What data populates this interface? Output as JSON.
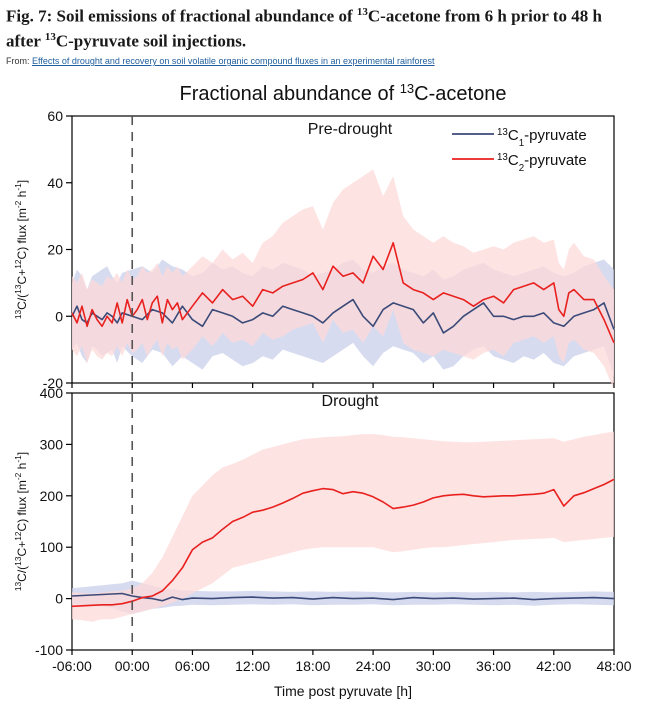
{
  "figure": {
    "label": "Fig. 7:",
    "title_a": " Soil emissions of fractional abundance of ",
    "title_iso": "13",
    "title_b": "C-acetone from 6  h prior to 48  h after ",
    "title_c": "C-pyruvate soil injections.",
    "from_prefix": "From: ",
    "from_link": "Effects of drought and recovery on soil volatile organic compound fluxes in an experimental rainforest"
  },
  "chart_data": {
    "type": "line",
    "title": "Fractional abundance of 13C-acetone",
    "xlabel": "Time post pyruvate  [h]",
    "x_ticks": [
      "-06:00",
      "00:00",
      "06:00",
      "12:00",
      "18:00",
      "24:00",
      "30:00",
      "36:00",
      "42:00",
      "48:00"
    ],
    "x_tick_values": [
      -6,
      0,
      6,
      12,
      18,
      24,
      30,
      36,
      42,
      48
    ],
    "xlim": [
      -6,
      48
    ],
    "vline_x": 0,
    "legend_position": "top-right",
    "legend": [
      {
        "sup": "13",
        "main": "C",
        "sub": "1",
        "tail": "-pyruvate",
        "color": "#3b4a78"
      },
      {
        "sup": "13",
        "main": "C",
        "sub": "2",
        "tail": "-pyruvate",
        "color": "#e8211f"
      }
    ],
    "panels": [
      {
        "title": "Pre-drought",
        "ylim": [
          -20,
          60
        ],
        "yticks": [
          "-20",
          "0",
          "20",
          "40",
          "60"
        ],
        "ytick_values": [
          -20,
          0,
          20,
          40,
          60
        ],
        "ylabel": "13C/(13C+12C) flux [m-2 h-1]",
        "series": [
          {
            "name": "13C1-pyruvate",
            "color": "#3b4a78",
            "band": "#c9cfe9",
            "x": [
              -6,
              -5.5,
              -5,
              -4.5,
              -4,
              -3.5,
              -3,
              -2.5,
              -2,
              -1.5,
              -1,
              0,
              1,
              2,
              3,
              4,
              5,
              6,
              7,
              8,
              9,
              10,
              11,
              12,
              13,
              14,
              15,
              16,
              17,
              18,
              19,
              20,
              21,
              22,
              23,
              24,
              25,
              26,
              27,
              28,
              29,
              30,
              31,
              32,
              33,
              34,
              35,
              36,
              37,
              38,
              39,
              40,
              41,
              42,
              43,
              44,
              45,
              46,
              47,
              48
            ],
            "y": [
              0,
              3,
              -1,
              -2,
              1,
              0,
              -1,
              1,
              0,
              -2,
              1,
              0,
              -1,
              2,
              1,
              -2,
              3,
              -1,
              -3,
              2,
              1,
              0,
              -2,
              -1,
              1,
              0,
              3,
              2,
              1,
              0,
              -2,
              1,
              3,
              5,
              0,
              -3,
              2,
              4,
              3,
              2,
              -2,
              1,
              -5,
              -3,
              0,
              2,
              4,
              0,
              0,
              -1,
              0,
              0,
              1,
              -2,
              -3,
              0,
              1,
              2,
              4,
              -4
            ],
            "upper": [
              10,
              14,
              12,
              8,
              12,
              13,
              14,
              15,
              12,
              10,
              13,
              14,
              15,
              13,
              17,
              15,
              14,
              12,
              13,
              16,
              14,
              15,
              13,
              12,
              15,
              14,
              16,
              15,
              14,
              12,
              13,
              14,
              16,
              17,
              14,
              13,
              15,
              16,
              14,
              13,
              12,
              14,
              11,
              12,
              14,
              15,
              16,
              14,
              13,
              12,
              13,
              14,
              15,
              13,
              12,
              13,
              15,
              16,
              17,
              14
            ],
            "lower": [
              -10,
              -8,
              -12,
              -14,
              -9,
              -10,
              -12,
              -11,
              -10,
              -14,
              -9,
              -12,
              -14,
              -10,
              -11,
              -15,
              -12,
              -14,
              -16,
              -12,
              -11,
              -13,
              -15,
              -14,
              -12,
              -13,
              -10,
              -11,
              -12,
              -13,
              -14,
              -12,
              -10,
              -8,
              -12,
              -15,
              -11,
              -9,
              -10,
              -11,
              -14,
              -12,
              -16,
              -15,
              -12,
              -10,
              -9,
              -12,
              -13,
              -14,
              -12,
              -13,
              -11,
              -14,
              -15,
              -12,
              -11,
              -10,
              -9,
              -18
            ]
          },
          {
            "name": "13C2-pyruvate",
            "color": "#e8211f",
            "band": "#fdd9d9",
            "x": [
              -6,
              -5.5,
              -5,
              -4.5,
              -4,
              -3.5,
              -3,
              -2.5,
              -2,
              -1.5,
              -1,
              -0.5,
              0,
              0.5,
              1,
              1.5,
              2,
              2.5,
              3,
              3.5,
              4,
              4.5,
              5,
              6,
              7,
              8,
              9,
              10,
              11,
              12,
              13,
              14,
              15,
              16,
              17,
              18,
              19,
              20,
              21,
              22,
              23,
              24,
              25,
              26,
              27,
              28,
              29,
              30,
              31,
              32,
              33,
              34,
              35,
              36,
              37,
              38,
              39,
              40,
              41,
              42,
              42.5,
              43,
              43.5,
              44,
              45,
              46,
              47,
              48
            ],
            "y": [
              1,
              -2,
              3,
              -3,
              2,
              -1,
              -3,
              0,
              -2,
              4,
              -2,
              5,
              0,
              2,
              5,
              -1,
              4,
              6,
              -2,
              5,
              2,
              4,
              -1,
              3,
              7,
              4,
              8,
              5,
              6,
              3,
              8,
              7,
              9,
              10,
              11,
              13,
              8,
              15,
              12,
              13,
              10,
              18,
              14,
              22,
              10,
              8,
              7,
              5,
              7,
              6,
              5,
              3,
              5,
              6,
              4,
              8,
              9,
              10,
              8,
              10,
              2,
              0,
              7,
              8,
              5,
              5,
              -1,
              -8
            ],
            "upper": [
              12,
              10,
              13,
              8,
              11,
              10,
              9,
              12,
              11,
              13,
              10,
              14,
              11,
              12,
              15,
              13,
              14,
              16,
              12,
              15,
              13,
              15,
              12,
              15,
              18,
              16,
              20,
              17,
              19,
              16,
              22,
              24,
              28,
              30,
              32,
              33,
              26,
              34,
              38,
              40,
              42,
              44,
              36,
              42,
              30,
              26,
              24,
              22,
              24,
              22,
              21,
              19,
              20,
              21,
              20,
              22,
              23,
              24,
              22,
              23,
              16,
              14,
              20,
              22,
              18,
              17,
              12,
              8
            ],
            "lower": [
              -10,
              -12,
              -9,
              -14,
              -10,
              -12,
              -13,
              -11,
              -12,
              -9,
              -12,
              -8,
              -11,
              -10,
              -8,
              -12,
              -9,
              -7,
              -12,
              -8,
              -10,
              -9,
              -13,
              -10,
              -6,
              -9,
              -5,
              -8,
              -7,
              -9,
              -5,
              -7,
              -6,
              -4,
              -3,
              -2,
              -8,
              -1,
              -5,
              -4,
              -8,
              -3,
              -6,
              2,
              -8,
              -10,
              -11,
              -12,
              -10,
              -11,
              -12,
              -13,
              -11,
              -10,
              -12,
              -8,
              -7,
              -6,
              -8,
              -6,
              -12,
              -14,
              -8,
              -7,
              -10,
              -11,
              -15,
              -22
            ]
          }
        ]
      },
      {
        "title": "Drought",
        "ylim": [
          -100,
          400
        ],
        "yticks": [
          "-100",
          "0",
          "100",
          "200",
          "300",
          "400"
        ],
        "ytick_values": [
          -100,
          0,
          100,
          200,
          300,
          400
        ],
        "ylabel": "13C/(13C+12C) flux [m-2 h-1]",
        "series": [
          {
            "name": "13C1-pyruvate",
            "color": "#3b4a78",
            "band": "#c9cfe9",
            "x": [
              -6,
              -5,
              -4,
              -3,
              -2,
              -1,
              0,
              1,
              2,
              3,
              4,
              5,
              6,
              8,
              10,
              12,
              14,
              16,
              18,
              20,
              22,
              24,
              26,
              28,
              30,
              32,
              34,
              36,
              38,
              40,
              42,
              44,
              46,
              48
            ],
            "y": [
              5,
              6,
              7,
              8,
              9,
              10,
              5,
              2,
              0,
              -4,
              3,
              -2,
              1,
              0,
              2,
              3,
              1,
              2,
              -1,
              2,
              0,
              1,
              -2,
              2,
              0,
              1,
              -1,
              0,
              1,
              -2,
              0,
              1,
              2,
              0
            ],
            "upper": [
              20,
              22,
              24,
              26,
              28,
              30,
              35,
              30,
              25,
              20,
              18,
              16,
              15,
              14,
              14,
              15,
              14,
              13,
              14,
              13,
              14,
              13,
              12,
              13,
              12,
              13,
              12,
              13,
              12,
              13,
              12,
              13,
              14,
              13
            ],
            "lower": [
              -10,
              -12,
              -14,
              -16,
              -18,
              -25,
              -30,
              -25,
              -20,
              -18,
              -15,
              -14,
              -12,
              -13,
              -12,
              -11,
              -12,
              -11,
              -13,
              -12,
              -12,
              -11,
              -13,
              -12,
              -12,
              -11,
              -12,
              -13,
              -12,
              -14,
              -12,
              -11,
              -12,
              -13
            ]
          },
          {
            "name": "13C2-pyruvate",
            "color": "#e8211f",
            "band": "#fdd9d9",
            "x": [
              -6,
              -5,
              -4,
              -3,
              -2,
              -1,
              0,
              1,
              2,
              3,
              4,
              5,
              6,
              7,
              8,
              9,
              10,
              11,
              12,
              13,
              14,
              15,
              16,
              17,
              18,
              19,
              20,
              21,
              22,
              23,
              24,
              25,
              26,
              27,
              28,
              29,
              30,
              31,
              32,
              33,
              34,
              35,
              36,
              37,
              38,
              39,
              40,
              41,
              42,
              43,
              44,
              45,
              46,
              47,
              48
            ],
            "y": [
              -15,
              -14,
              -13,
              -12,
              -12,
              -10,
              -5,
              2,
              5,
              15,
              35,
              60,
              95,
              110,
              118,
              135,
              150,
              158,
              168,
              172,
              178,
              186,
              195,
              205,
              210,
              214,
              212,
              204,
              208,
              205,
              198,
              188,
              175,
              178,
              182,
              188,
              196,
              200,
              202,
              203,
              200,
              198,
              199,
              200,
              200,
              202,
              203,
              205,
              212,
              180,
              200,
              206,
              214,
              222,
              232
            ],
            "upper": [
              12,
              11,
              10,
              12,
              14,
              15,
              20,
              30,
              50,
              80,
              120,
              160,
              200,
              220,
              240,
              255,
              262,
              270,
              280,
              290,
              295,
              300,
              305,
              310,
              312,
              314,
              315,
              316,
              318,
              320,
              320,
              318,
              315,
              314,
              312,
              310,
              308,
              306,
              305,
              304,
              304,
              305,
              306,
              307,
              308,
              309,
              310,
              311,
              312,
              305,
              310,
              315,
              318,
              322,
              325
            ],
            "lower": [
              -40,
              -42,
              -45,
              -40,
              -40,
              -35,
              -30,
              -25,
              -20,
              -15,
              -8,
              0,
              10,
              20,
              30,
              45,
              60,
              65,
              70,
              75,
              80,
              85,
              90,
              95,
              98,
              100,
              100,
              100,
              100,
              100,
              100,
              95,
              90,
              92,
              95,
              98,
              100,
              100,
              102,
              104,
              106,
              108,
              110,
              112,
              114,
              115,
              116,
              117,
              118,
              110,
              112,
              114,
              116,
              118,
              120
            ]
          }
        ]
      }
    ]
  }
}
